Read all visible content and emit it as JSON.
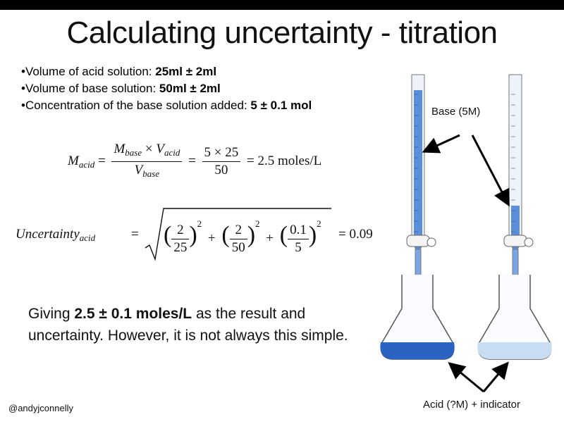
{
  "title": "Calculating uncertainty - titration",
  "bullets": [
    {
      "prefix": "•Volume of acid solution: ",
      "bold": "25ml ± 2ml"
    },
    {
      "prefix": "•Volume of base solution: ",
      "bold": "50ml ± 2ml"
    },
    {
      "prefix": "•Concentration of the base solution added: ",
      "bold": "5 ± 0.1 mol"
    }
  ],
  "equation1": {
    "lhs_var": "M",
    "lhs_sub": "acid",
    "num_a": "M",
    "num_a_sub": "base",
    "times": "×",
    "num_b": "V",
    "num_b_sub": "acid",
    "den": "V",
    "den_sub": "base",
    "num2": "5 × 25",
    "den2": "50",
    "result": "= 2.5 moles/L"
  },
  "equation2": {
    "lhs_var": "Uncertainty",
    "lhs_sub": "acid",
    "terms": [
      {
        "num": "2",
        "den": "25"
      },
      {
        "num": "2",
        "den": "50"
      },
      {
        "num": "0.1",
        "den": "5"
      }
    ],
    "exponent": "2",
    "result": "= 0.09"
  },
  "conclusion": {
    "before": "Giving ",
    "bold": "2.5 ± 0.1 moles/L",
    "after": " as the result and uncertainty. However, it is not always this simple."
  },
  "handle": "@andyjconnelly",
  "labels": {
    "base": "Base (5M)",
    "acid": "Acid (?M) + indicator"
  },
  "colors": {
    "base_blue": "#2a63c4",
    "acid_light": "#c8dcf2",
    "burette_fill": "#5b8fdc"
  }
}
